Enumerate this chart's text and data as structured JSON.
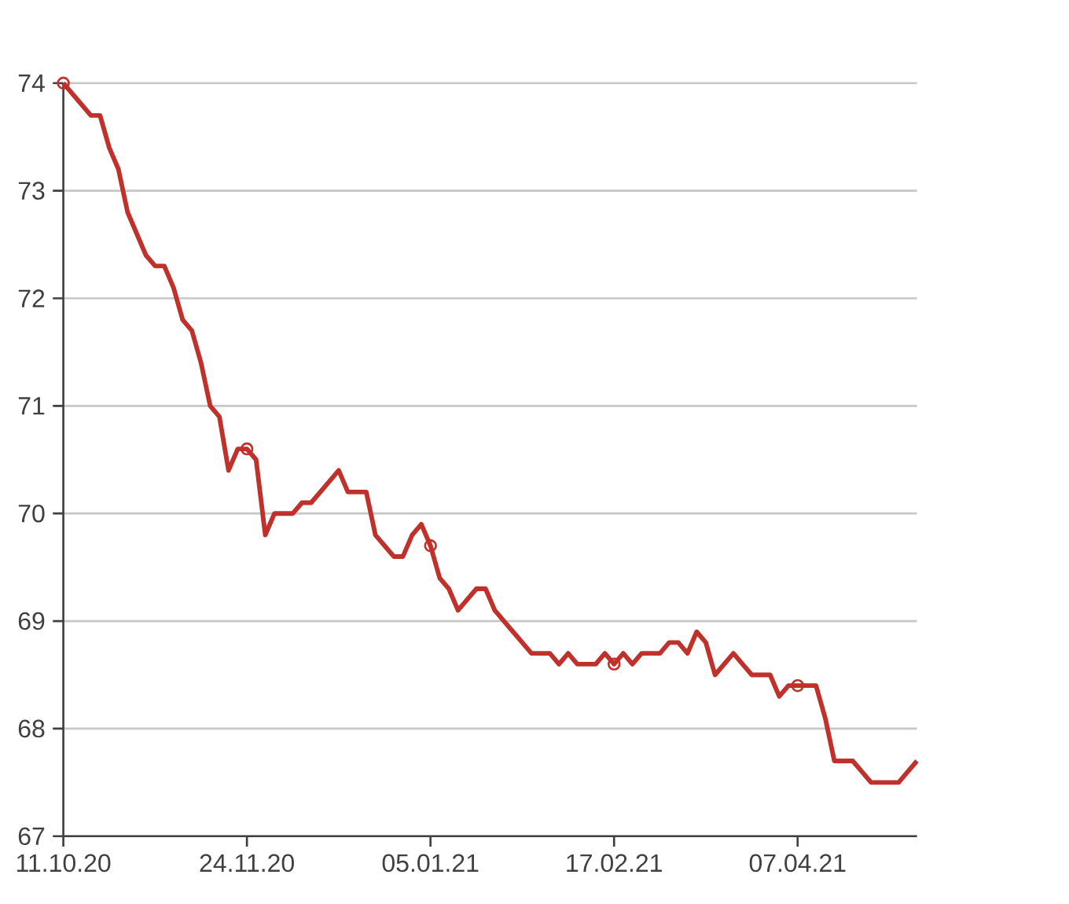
{
  "chart_data": {
    "type": "line",
    "categories": [
      "11.10.20",
      null,
      null,
      null,
      null,
      null,
      null,
      null,
      null,
      null,
      null,
      null,
      null,
      null,
      null,
      null,
      null,
      null,
      null,
      null,
      "24.11.20",
      null,
      null,
      null,
      null,
      null,
      null,
      null,
      null,
      null,
      null,
      null,
      null,
      null,
      null,
      null,
      null,
      null,
      null,
      null,
      "05.01.21",
      null,
      null,
      null,
      null,
      null,
      null,
      null,
      null,
      null,
      null,
      null,
      null,
      null,
      null,
      null,
      null,
      null,
      null,
      null,
      "17.02.21",
      null,
      null,
      null,
      null,
      null,
      null,
      null,
      null,
      null,
      null,
      null,
      null,
      null,
      null,
      null,
      null,
      null,
      null,
      null,
      "07.04.21",
      null,
      null,
      null,
      null,
      null,
      null,
      null,
      null,
      null,
      null,
      null,
      null,
      null
    ],
    "ylim": [
      67,
      74
    ],
    "yticks": [
      67,
      68,
      69,
      70,
      71,
      72,
      73,
      74
    ],
    "grid": "y",
    "line_style": "solid",
    "series": [
      {
        "color": "#c1312b",
        "values": [
          74.0,
          73.9,
          73.8,
          73.7,
          73.7,
          73.4,
          73.2,
          72.8,
          72.6,
          72.4,
          72.3,
          72.3,
          72.1,
          71.8,
          71.7,
          71.4,
          71.0,
          70.9,
          70.4,
          70.6,
          70.6,
          70.5,
          69.8,
          70.0,
          70.0,
          70.0,
          70.1,
          70.1,
          70.2,
          70.3,
          70.4,
          70.2,
          70.2,
          70.2,
          69.8,
          69.7,
          69.6,
          69.6,
          69.8,
          69.9,
          69.7,
          69.4,
          69.3,
          69.1,
          69.2,
          69.3,
          69.3,
          69.1,
          69.0,
          68.9,
          68.8,
          68.7,
          68.7,
          68.7,
          68.6,
          68.7,
          68.6,
          68.6,
          68.6,
          68.7,
          68.6,
          68.7,
          68.6,
          68.7,
          68.7,
          68.7,
          68.8,
          68.8,
          68.7,
          68.9,
          68.8,
          68.5,
          68.6,
          68.7,
          68.6,
          68.5,
          68.5,
          68.5,
          68.3,
          68.4,
          68.4,
          68.4,
          68.4,
          68.1,
          67.7,
          67.7,
          67.7,
          67.6,
          67.5,
          67.5,
          67.5,
          67.5,
          67.6,
          67.7
        ]
      },
      {
        "type": "scatter",
        "marker": "circle",
        "color": "#c1312b",
        "values": [
          74.0,
          null,
          null,
          null,
          null,
          null,
          null,
          null,
          null,
          null,
          null,
          null,
          null,
          null,
          null,
          null,
          null,
          null,
          null,
          null,
          70.6,
          null,
          null,
          null,
          null,
          null,
          null,
          null,
          null,
          null,
          null,
          null,
          null,
          null,
          null,
          null,
          null,
          null,
          null,
          null,
          69.7,
          null,
          null,
          null,
          null,
          null,
          null,
          null,
          null,
          null,
          null,
          null,
          null,
          null,
          null,
          null,
          null,
          null,
          null,
          null,
          68.6,
          null,
          null,
          null,
          null,
          null,
          null,
          null,
          null,
          null,
          null,
          null,
          null,
          null,
          null,
          null,
          null,
          null,
          null,
          null,
          68.4,
          null,
          null,
          null,
          null,
          null,
          null,
          null,
          null,
          null,
          null,
          null,
          null,
          null
        ]
      }
    ]
  }
}
